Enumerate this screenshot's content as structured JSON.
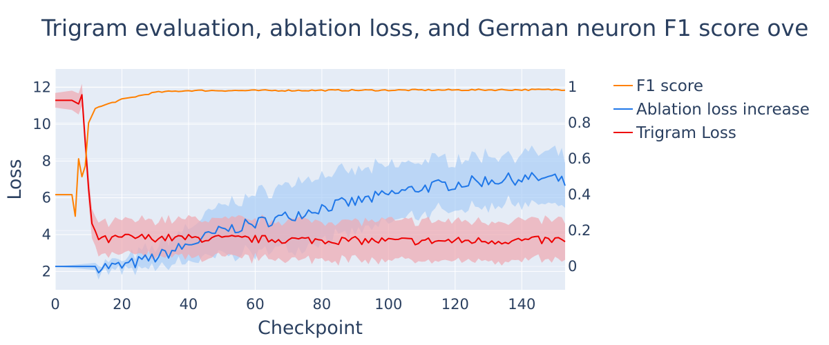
{
  "chart_data": {
    "type": "line",
    "title": "Trigram evaluation, ablation loss, and German neuron F1 score ove",
    "xlabel": "Checkpoint",
    "ylabel": "Loss",
    "y2label": "",
    "xlim": [
      0,
      153
    ],
    "ylim": [
      1,
      13
    ],
    "y2lim": [
      -0.13,
      1.1
    ],
    "x_ticks": [
      "0",
      "20",
      "40",
      "60",
      "80",
      "100",
      "120",
      "140"
    ],
    "y_ticks": [
      "2",
      "4",
      "6",
      "8",
      "10",
      "12"
    ],
    "y2_ticks": [
      "0",
      "0.2",
      "0.4",
      "0.6",
      "0.8",
      "1"
    ],
    "grid": true,
    "legend_position": "right",
    "colors": {
      "plot_bg": "#e5ecf6",
      "grid": "#ffffff",
      "f1": "#ff8000",
      "ablation": "#1f77e8",
      "ablation_band": "#a9cdf7",
      "trigram": "#ee0000",
      "trigram_band": "#f0a8b0"
    },
    "series": [
      {
        "name": "F1 score",
        "axis": "y2",
        "key_points": [
          [
            0,
            0.4
          ],
          [
            5,
            0.4
          ],
          [
            6,
            0.28
          ],
          [
            7,
            0.6
          ],
          [
            8,
            0.5
          ],
          [
            9,
            0.56
          ],
          [
            10,
            0.8
          ],
          [
            12,
            0.88
          ],
          [
            15,
            0.9
          ],
          [
            20,
            0.93
          ],
          [
            25,
            0.95
          ],
          [
            30,
            0.97
          ],
          [
            40,
            0.98
          ],
          [
            60,
            0.98
          ],
          [
            153,
            0.985
          ]
        ]
      },
      {
        "name": "Ablation loss increase",
        "axis": "y2",
        "key_points": [
          [
            0,
            0.0
          ],
          [
            12,
            0.0
          ],
          [
            20,
            0.0
          ],
          [
            30,
            0.05
          ],
          [
            40,
            0.12
          ],
          [
            50,
            0.2
          ],
          [
            60,
            0.24
          ],
          [
            70,
            0.28
          ],
          [
            80,
            0.33
          ],
          [
            90,
            0.36
          ],
          [
            100,
            0.4
          ],
          [
            110,
            0.44
          ],
          [
            120,
            0.46
          ],
          [
            130,
            0.48
          ],
          [
            140,
            0.49
          ],
          [
            150,
            0.49
          ],
          [
            153,
            0.46
          ]
        ],
        "band_halfwidth": [
          [
            0,
            0.0
          ],
          [
            12,
            0.02
          ],
          [
            20,
            0.03
          ],
          [
            30,
            0.06
          ],
          [
            40,
            0.1
          ],
          [
            50,
            0.14
          ],
          [
            60,
            0.16
          ],
          [
            70,
            0.18
          ],
          [
            80,
            0.18
          ],
          [
            100,
            0.16
          ],
          [
            120,
            0.14
          ],
          [
            153,
            0.14
          ]
        ]
      },
      {
        "name": "Trigram Loss",
        "axis": "y",
        "key_points": [
          [
            0,
            11.3
          ],
          [
            5,
            11.3
          ],
          [
            6,
            11.2
          ],
          [
            7,
            11.1
          ],
          [
            8,
            11.6
          ],
          [
            9,
            9.0
          ],
          [
            10,
            6.5
          ],
          [
            11,
            4.6
          ],
          [
            13,
            3.8
          ],
          [
            16,
            3.7
          ],
          [
            20,
            3.85
          ],
          [
            40,
            3.8
          ],
          [
            60,
            3.75
          ],
          [
            80,
            3.7
          ],
          [
            100,
            3.65
          ],
          [
            120,
            3.65
          ],
          [
            153,
            3.7
          ]
        ],
        "band_halfwidth": [
          [
            0,
            0.4
          ],
          [
            8,
            0.6
          ],
          [
            10,
            0.8
          ],
          [
            12,
            0.8
          ],
          [
            16,
            0.9
          ],
          [
            40,
            1.05
          ],
          [
            153,
            1.1
          ]
        ]
      }
    ]
  }
}
